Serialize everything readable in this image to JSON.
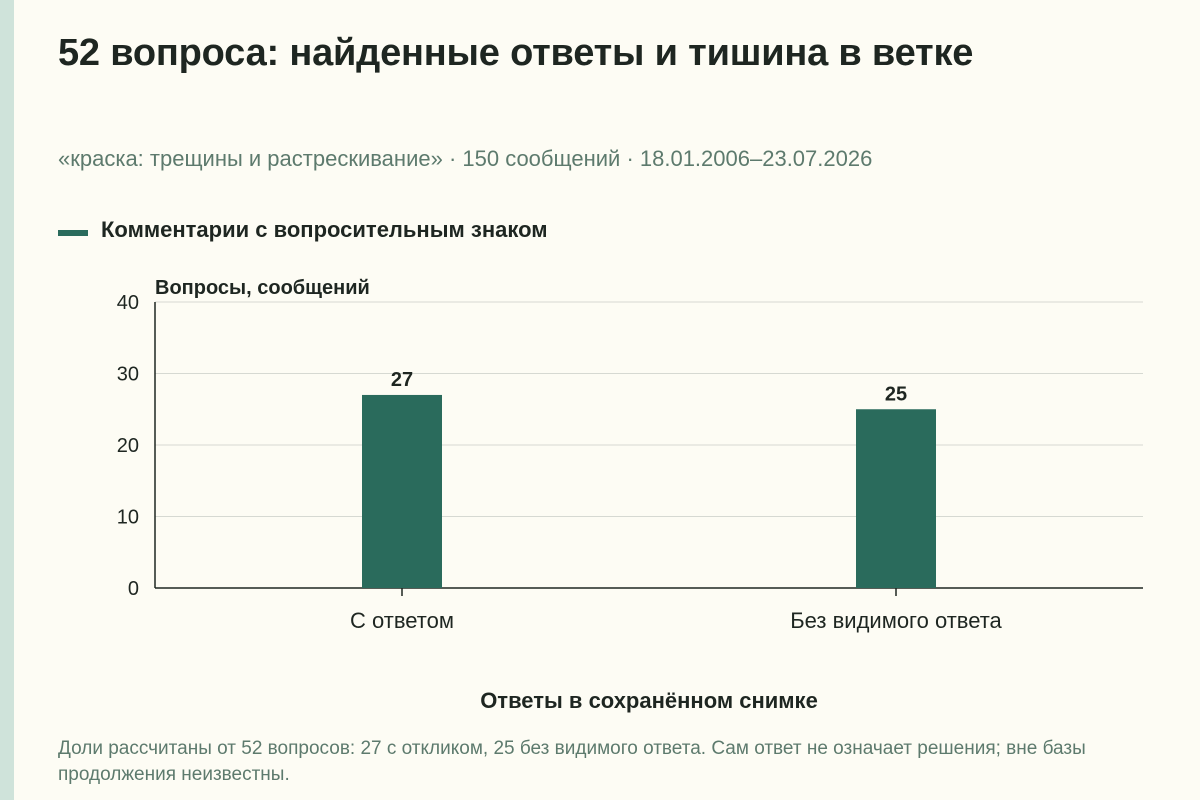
{
  "title": "52 вопроса: найденные ответы и тишина в ветке",
  "subtitle": "«краска: трещины и растрескивание» · 150 сообщений · 18.01.2006–23.07.2026",
  "legend": {
    "label": "Комментарии с вопросительным знаком",
    "color": "#2a6b5c"
  },
  "chart_data": {
    "type": "bar",
    "categories": [
      "С ответом",
      "Без видимого ответа"
    ],
    "series": [
      {
        "name": "Комментарии с вопросительным знаком",
        "values": [
          27,
          25
        ],
        "color": "#2a6b5c"
      }
    ],
    "data_labels": [
      "27",
      "25"
    ],
    "ylabel": "Вопросы, сообщений",
    "xlabel": "Ответы в сохранённом снимке",
    "ylim": [
      0,
      40
    ],
    "yticks": [
      0,
      10,
      20,
      30,
      40
    ],
    "grid": true,
    "legend_position": "top-left"
  },
  "footnote": "Доли рассчитаны от 52 вопросов: 27 с откликом, 25 без видимого ответа. Сам ответ не означает решения; вне базы продолжения неизвестны."
}
